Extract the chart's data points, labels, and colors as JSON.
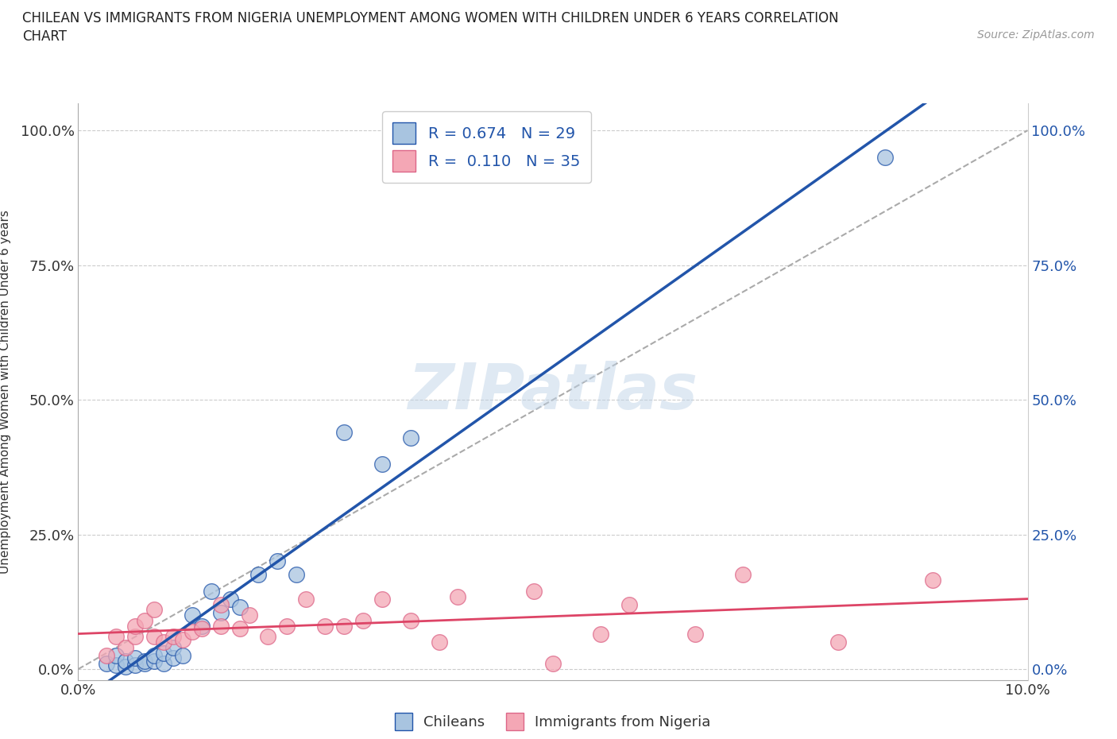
{
  "title_line1": "CHILEAN VS IMMIGRANTS FROM NIGERIA UNEMPLOYMENT AMONG WOMEN WITH CHILDREN UNDER 6 YEARS CORRELATION",
  "title_line2": "CHART",
  "source": "Source: ZipAtlas.com",
  "xlabel_label": "Chileans",
  "xlabel_label2": "Immigrants from Nigeria",
  "ylabel": "Unemployment Among Women with Children Under 6 years",
  "xlim": [
    0.0,
    0.1
  ],
  "ylim": [
    -0.02,
    1.05
  ],
  "x_ticks": [
    0.0,
    0.1
  ],
  "x_tick_labels": [
    "0.0%",
    "10.0%"
  ],
  "y_ticks": [
    0.0,
    0.25,
    0.5,
    0.75,
    1.0
  ],
  "y_tick_labels": [
    "0.0%",
    "25.0%",
    "50.0%",
    "75.0%",
    "100.0%"
  ],
  "r_chilean": 0.674,
  "n_chilean": 29,
  "r_nigeria": 0.11,
  "n_nigeria": 35,
  "chilean_color": "#a8c4e0",
  "nigeria_color": "#f4a7b5",
  "trend_chilean_color": "#2255aa",
  "trend_nigeria_color": "#dd4466",
  "watermark": "ZIPatlas",
  "chilean_x": [
    0.003,
    0.004,
    0.004,
    0.005,
    0.005,
    0.006,
    0.006,
    0.007,
    0.007,
    0.008,
    0.008,
    0.009,
    0.009,
    0.01,
    0.01,
    0.011,
    0.012,
    0.013,
    0.014,
    0.015,
    0.016,
    0.017,
    0.019,
    0.021,
    0.023,
    0.028,
    0.032,
    0.035,
    0.085
  ],
  "chilean_y": [
    0.01,
    0.008,
    0.025,
    0.005,
    0.015,
    0.008,
    0.02,
    0.01,
    0.015,
    0.015,
    0.025,
    0.01,
    0.03,
    0.02,
    0.04,
    0.025,
    0.1,
    0.08,
    0.145,
    0.105,
    0.13,
    0.115,
    0.175,
    0.2,
    0.175,
    0.44,
    0.38,
    0.43,
    0.95
  ],
  "nigeria_x": [
    0.003,
    0.004,
    0.005,
    0.006,
    0.006,
    0.007,
    0.008,
    0.008,
    0.009,
    0.01,
    0.011,
    0.012,
    0.013,
    0.015,
    0.015,
    0.017,
    0.018,
    0.02,
    0.022,
    0.024,
    0.026,
    0.028,
    0.03,
    0.032,
    0.035,
    0.038,
    0.04,
    0.048,
    0.05,
    0.055,
    0.058,
    0.065,
    0.07,
    0.08,
    0.09
  ],
  "nigeria_y": [
    0.025,
    0.06,
    0.04,
    0.06,
    0.08,
    0.09,
    0.06,
    0.11,
    0.05,
    0.06,
    0.055,
    0.07,
    0.075,
    0.12,
    0.08,
    0.075,
    0.1,
    0.06,
    0.08,
    0.13,
    0.08,
    0.08,
    0.09,
    0.13,
    0.09,
    0.05,
    0.135,
    0.145,
    0.01,
    0.065,
    0.12,
    0.065,
    0.175,
    0.05,
    0.165
  ]
}
